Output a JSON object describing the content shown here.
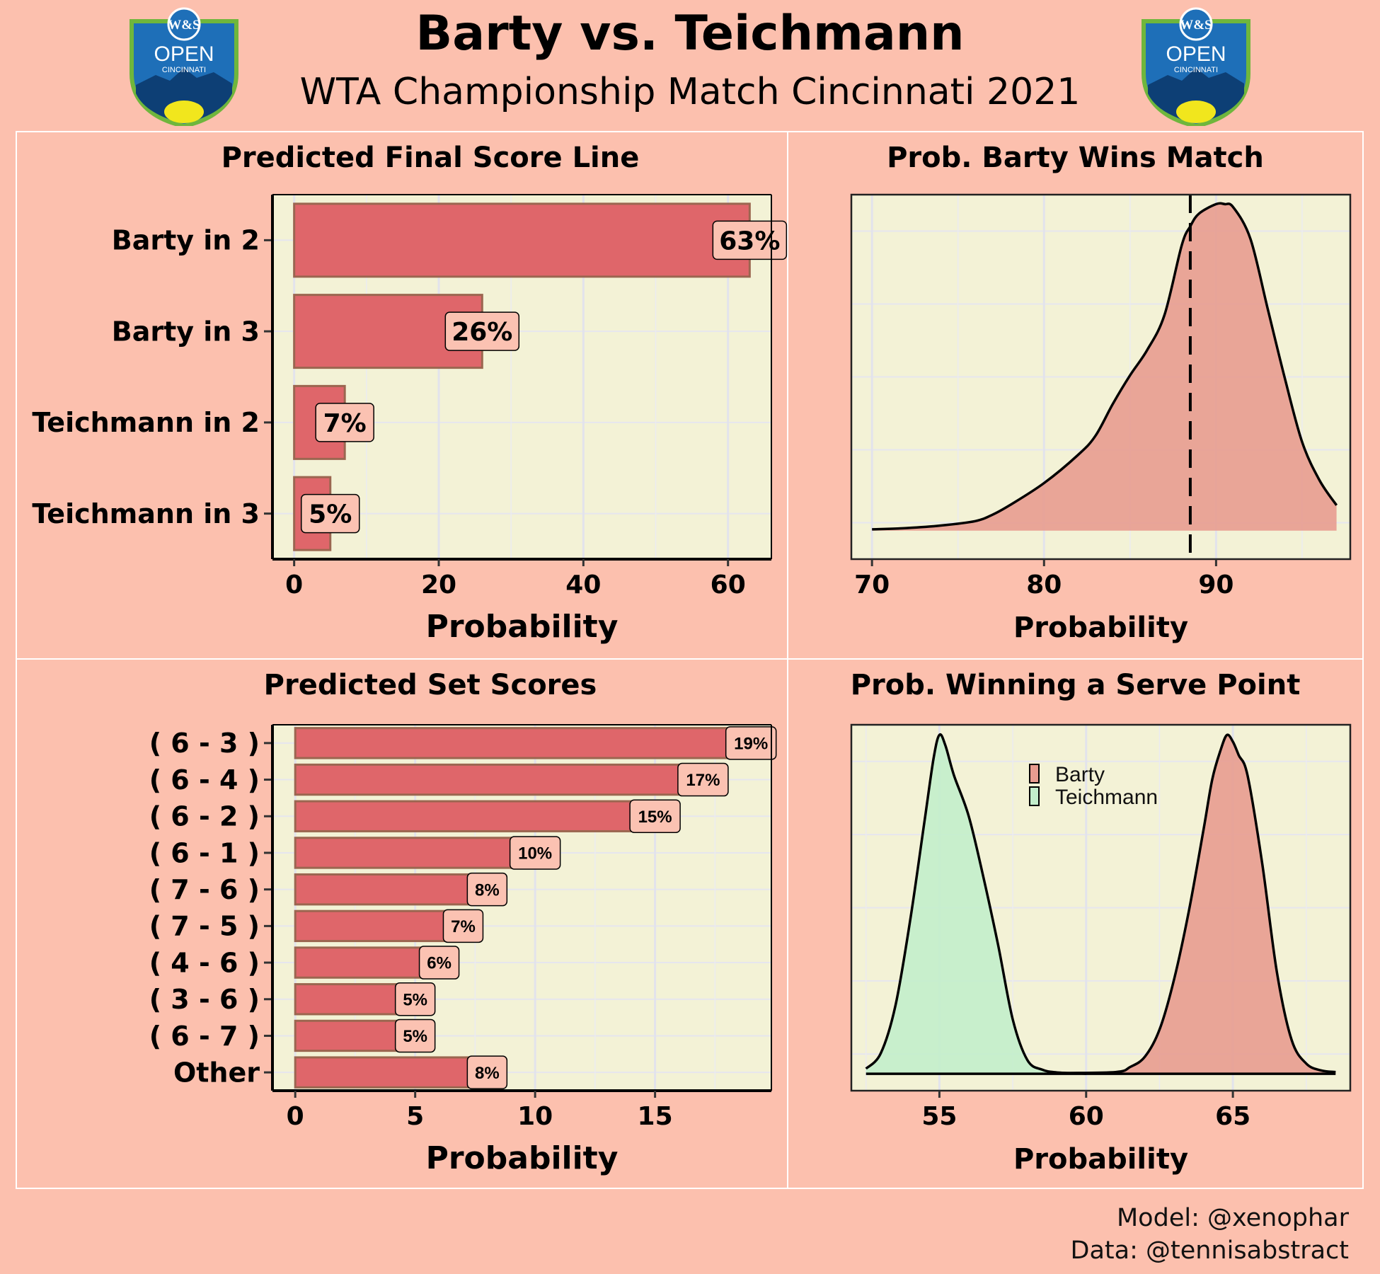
{
  "header": {
    "title": "Barty vs. Teichmann",
    "subtitle": "WTA Championship Match Cincinnati 2021",
    "logo_top_text": "W&S",
    "logo_main_text": "OPEN",
    "logo_sub_text": "CINCINNATI"
  },
  "caption": {
    "line1": "Model: @xenophar",
    "line2": "Data: @tennisabstract"
  },
  "colors": {
    "background": "#fcc0ae",
    "panel_background": "#f3f2d6",
    "bar_fill": "#df666a",
    "bar_border": "#9b6650",
    "label_fill": "#fbc2b2",
    "barty_density": "#e89c90",
    "teichmann_density": "#c3eecb"
  },
  "chart_data": [
    {
      "type": "bar",
      "orientation": "horizontal",
      "title": "Predicted Final Score Line",
      "xlabel": "Probability",
      "categories": [
        "Barty in 2",
        "Barty in 3",
        "Teichmann in 2",
        "Teichmann in 3"
      ],
      "values": [
        63,
        26,
        7,
        5
      ],
      "data_labels": [
        "63%",
        "26%",
        "7%",
        "5%"
      ],
      "xlim": [
        -3,
        66
      ],
      "xticks": [
        0,
        20,
        40,
        60
      ]
    },
    {
      "type": "area",
      "title": "Prob. Barty Wins Match",
      "xlabel": "Probability",
      "x": [
        70,
        72,
        74,
        76,
        77,
        78,
        80,
        82,
        83,
        84,
        85,
        86,
        87,
        88,
        88.5,
        89,
        90,
        90.5,
        91,
        92,
        93,
        94,
        95,
        96,
        97
      ],
      "y": [
        0.002,
        0.004,
        0.008,
        0.015,
        0.025,
        0.04,
        0.075,
        0.12,
        0.15,
        0.2,
        0.245,
        0.285,
        0.34,
        0.45,
        0.48,
        0.5,
        0.515,
        0.515,
        0.51,
        0.46,
        0.35,
        0.24,
        0.14,
        0.08,
        0.04
      ],
      "xlim": [
        68.8,
        97.8
      ],
      "ylim": [
        -0.045,
        0.53
      ],
      "xticks": [
        70,
        80,
        90
      ],
      "vline": 88.5
    },
    {
      "type": "bar",
      "orientation": "horizontal",
      "title": "Predicted Set Scores",
      "xlabel": "Probability",
      "categories": [
        "( 6 - 3 )",
        "( 6 - 4 )",
        "( 6 - 2 )",
        "( 6 - 1 )",
        "( 7 - 6 )",
        "( 7 - 5 )",
        "( 4 - 6 )",
        "( 3 - 6 )",
        "( 6 - 7 )",
        "Other"
      ],
      "values": [
        19,
        17,
        15,
        10,
        8,
        7,
        6,
        5,
        5,
        8
      ],
      "data_labels": [
        "19%",
        "17%",
        "15%",
        "10%",
        "8%",
        "7%",
        "6%",
        "5%",
        "5%",
        "8%"
      ],
      "xlim": [
        -0.95,
        19.85
      ],
      "xticks": [
        0,
        5,
        10,
        15
      ]
    },
    {
      "type": "area",
      "title": "Prob. Winning a Serve Point",
      "xlabel": "Probability",
      "xlim": [
        52,
        69
      ],
      "ylim": [
        -0.05,
        1.03
      ],
      "xticks": [
        55,
        60,
        65
      ],
      "legend_position": "top-center",
      "series": [
        {
          "name": "Barty",
          "color": "#e89c90",
          "x": [
            59,
            61,
            61.5,
            62,
            62.5,
            63,
            63.5,
            64,
            64.3,
            64.6,
            64.8,
            65,
            65.2,
            65.5,
            66,
            66.5,
            67,
            67.5,
            68,
            68.5
          ],
          "y": [
            0.002,
            0.005,
            0.02,
            0.05,
            0.13,
            0.28,
            0.48,
            0.72,
            0.87,
            0.96,
            1.0,
            0.98,
            0.94,
            0.88,
            0.62,
            0.3,
            0.1,
            0.03,
            0.01,
            0.005
          ]
        },
        {
          "name": "Teichmann",
          "color": "#c3eecb",
          "x": [
            52.5,
            53,
            53.5,
            54,
            54.5,
            54.8,
            55,
            55.2,
            55.5,
            56,
            56.5,
            57,
            57.5,
            58,
            58.5,
            59,
            60
          ],
          "y": [
            0.015,
            0.06,
            0.2,
            0.45,
            0.75,
            0.93,
            1.0,
            0.97,
            0.88,
            0.76,
            0.58,
            0.38,
            0.16,
            0.04,
            0.012,
            0.004,
            0.0
          ]
        }
      ]
    }
  ]
}
